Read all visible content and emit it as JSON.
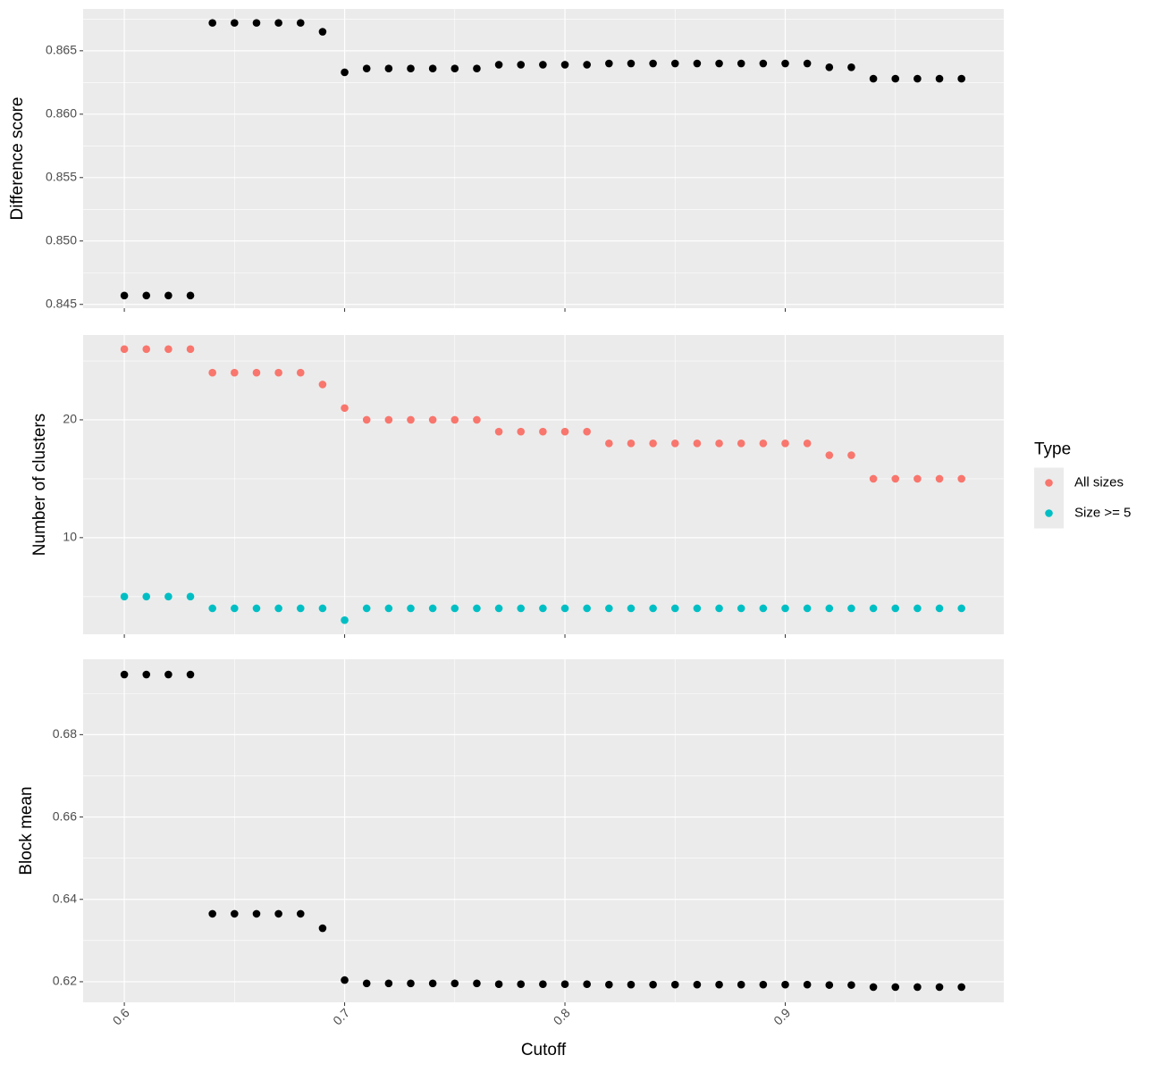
{
  "chart_data": [
    {
      "type": "scatter",
      "y_label": "Difference score",
      "x": [
        0.6,
        0.61,
        0.62,
        0.63,
        0.64,
        0.65,
        0.66,
        0.67,
        0.68,
        0.69,
        0.7,
        0.71,
        0.72,
        0.73,
        0.74,
        0.75,
        0.76,
        0.77,
        0.78,
        0.79,
        0.8,
        0.81,
        0.82,
        0.83,
        0.84,
        0.85,
        0.86,
        0.87,
        0.88,
        0.89,
        0.9,
        0.91,
        0.92,
        0.93,
        0.94,
        0.95,
        0.96,
        0.97,
        0.98
      ],
      "series": [
        {
          "color": "#000000",
          "values": [
            0.8457,
            0.8457,
            0.8457,
            0.8457,
            0.8672,
            0.8672,
            0.8672,
            0.8672,
            0.8672,
            0.8665,
            0.8633,
            0.8636,
            0.8636,
            0.8636,
            0.8636,
            0.8636,
            0.8636,
            0.8639,
            0.8639,
            0.8639,
            0.8639,
            0.8639,
            0.864,
            0.864,
            0.864,
            0.864,
            0.864,
            0.864,
            0.864,
            0.864,
            0.864,
            0.864,
            0.8637,
            0.8637,
            0.8628,
            0.8628,
            0.8628,
            0.8628,
            0.8628
          ]
        }
      ],
      "xlim": [
        0.5813,
        0.9992
      ],
      "xticks": [
        0.6,
        0.7,
        0.8,
        0.9
      ],
      "ylim": [
        0.8447,
        0.8683
      ],
      "yticks": [
        0.845,
        {
          "value": 0.85,
          "label": "0.850"
        },
        0.855,
        {
          "value": 0.86,
          "label": "0.860"
        },
        0.865
      ],
      "grid": true
    },
    {
      "type": "scatter",
      "y_label": "Number of clusters",
      "legend_title": "Type",
      "legend_position": "right",
      "x": [
        0.6,
        0.61,
        0.62,
        0.63,
        0.64,
        0.65,
        0.66,
        0.67,
        0.68,
        0.69,
        0.7,
        0.71,
        0.72,
        0.73,
        0.74,
        0.75,
        0.76,
        0.77,
        0.78,
        0.79,
        0.8,
        0.81,
        0.82,
        0.83,
        0.84,
        0.85,
        0.86,
        0.87,
        0.88,
        0.89,
        0.9,
        0.91,
        0.92,
        0.93,
        0.94,
        0.95,
        0.96,
        0.97,
        0.98
      ],
      "series": [
        {
          "name": "All sizes",
          "color": "#F8766D",
          "values": [
            26,
            26,
            26,
            26,
            24,
            24,
            24,
            24,
            24,
            23,
            21,
            20,
            20,
            20,
            20,
            20,
            20,
            19,
            19,
            19,
            19,
            19,
            18,
            18,
            18,
            18,
            18,
            18,
            18,
            18,
            18,
            18,
            17,
            17,
            15,
            15,
            15,
            15,
            15
          ]
        },
        {
          "name": "Size >= 5",
          "color": "#00BFC4",
          "values": [
            5,
            5,
            5,
            5,
            4,
            4,
            4,
            4,
            4,
            4,
            3,
            4,
            4,
            4,
            4,
            4,
            4,
            4,
            4,
            4,
            4,
            4,
            4,
            4,
            4,
            4,
            4,
            4,
            4,
            4,
            4,
            4,
            4,
            4,
            4,
            4,
            4,
            4,
            4
          ]
        }
      ],
      "xlim": [
        0.5813,
        0.9992
      ],
      "xticks": [
        0.6,
        0.7,
        0.8,
        0.9
      ],
      "ylim": [
        1.8,
        27.2
      ],
      "yticks": [
        10,
        20
      ],
      "grid": true
    },
    {
      "type": "scatter",
      "y_label": "Block mean",
      "x_label": "Cutoff",
      "x": [
        0.6,
        0.61,
        0.62,
        0.63,
        0.64,
        0.65,
        0.66,
        0.67,
        0.68,
        0.69,
        0.7,
        0.71,
        0.72,
        0.73,
        0.74,
        0.75,
        0.76,
        0.77,
        0.78,
        0.79,
        0.8,
        0.81,
        0.82,
        0.83,
        0.84,
        0.85,
        0.86,
        0.87,
        0.88,
        0.89,
        0.9,
        0.91,
        0.92,
        0.93,
        0.94,
        0.95,
        0.96,
        0.97,
        0.98
      ],
      "series": [
        {
          "color": "#000000",
          "values": [
            0.6946,
            0.6946,
            0.6946,
            0.6946,
            0.6365,
            0.6365,
            0.6365,
            0.6365,
            0.6365,
            0.633,
            0.6204,
            0.6196,
            0.6196,
            0.6196,
            0.6196,
            0.6196,
            0.6196,
            0.6194,
            0.6194,
            0.6194,
            0.6194,
            0.6194,
            0.6193,
            0.6193,
            0.6193,
            0.6193,
            0.6193,
            0.6193,
            0.6193,
            0.6193,
            0.6193,
            0.6193,
            0.6192,
            0.6192,
            0.6187,
            0.6187,
            0.6187,
            0.6187,
            0.6187
          ]
        }
      ],
      "xlim": [
        0.5813,
        0.9992
      ],
      "xticks": [
        0.6,
        0.7,
        0.8,
        0.9
      ],
      "ylim": [
        0.615,
        0.6983
      ],
      "yticks": [
        0.62,
        0.64,
        0.66,
        0.68
      ],
      "grid": true
    }
  ]
}
